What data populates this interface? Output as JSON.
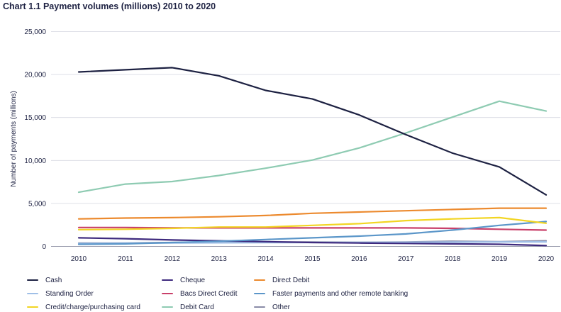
{
  "chart_data": {
    "type": "line",
    "title": "Chart 1.1 Payment volumes (millions) 2010 to 2020",
    "xlabel": "",
    "ylabel": "Number of payments (millions)",
    "ylim": [
      0,
      25000
    ],
    "yticks": [
      0,
      5000,
      10000,
      15000,
      20000,
      25000
    ],
    "ytick_labels": [
      "0",
      "5,000",
      "10,000",
      "15,000",
      "20,000",
      "25,000"
    ],
    "categories": [
      "2010",
      "2011",
      "2012",
      "2013",
      "2014",
      "2015",
      "2016",
      "2017",
      "2018",
      "2019",
      "2020"
    ],
    "grid": "horizontal",
    "legend_placement": "bottom",
    "series": [
      {
        "name": "Cash",
        "color": "#1d2142",
        "values": [
          20300,
          20550,
          20800,
          19850,
          18150,
          17150,
          15300,
          13000,
          10850,
          9250,
          6000
        ]
      },
      {
        "name": "Cheque",
        "color": "#3e2a7e",
        "values": [
          1000,
          900,
          750,
          650,
          550,
          450,
          400,
          350,
          300,
          250,
          100
        ]
      },
      {
        "name": "Direct Debit",
        "color": "#ec8a2e",
        "values": [
          3200,
          3300,
          3350,
          3450,
          3600,
          3850,
          4000,
          4150,
          4300,
          4450,
          4450
        ]
      },
      {
        "name": "Standing Order",
        "color": "#9fbfe7",
        "values": [
          350,
          380,
          400,
          420,
          440,
          450,
          460,
          480,
          500,
          520,
          530
        ]
      },
      {
        "name": "Bacs Direct Credit",
        "color": "#c9406a",
        "values": [
          2200,
          2200,
          2150,
          2150,
          2150,
          2150,
          2150,
          2150,
          2100,
          2000,
          1900
        ]
      },
      {
        "name": "Faster payments and other remote banking",
        "color": "#5b96c9",
        "values": [
          250,
          300,
          450,
          600,
          800,
          1000,
          1200,
          1450,
          1900,
          2450,
          2900
        ]
      },
      {
        "name": "Credit/charge/purchasing card",
        "color": "#f2d523",
        "values": [
          1950,
          2000,
          2100,
          2250,
          2250,
          2450,
          2650,
          3000,
          3200,
          3350,
          2700
        ]
      },
      {
        "name": "Debit Card",
        "color": "#8ecbb2",
        "values": [
          6300,
          7250,
          7550,
          8250,
          9100,
          10050,
          11450,
          13200,
          15050,
          16900,
          15750
        ]
      },
      {
        "name": "Other",
        "color": "#8a8ca8",
        "values": [
          400,
          400,
          450,
          500,
          500,
          500,
          480,
          500,
          600,
          550,
          650
        ]
      }
    ]
  }
}
